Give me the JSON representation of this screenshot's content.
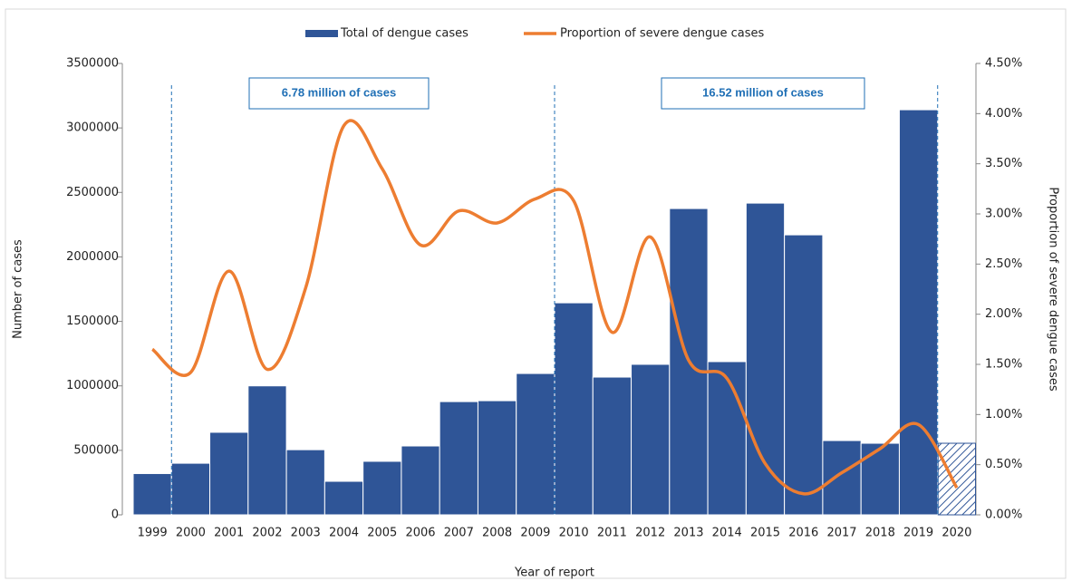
{
  "chart_data": {
    "type": "bar-line",
    "legend_position": "top",
    "x_label": "Year of report",
    "y_label": "Number of cases",
    "y2_label": "Proportion of severe dengue cases",
    "annotations": [
      "6.78 million of cases",
      "16.52 million of cases"
    ],
    "categories": [
      "1999",
      "2000",
      "2001",
      "2002",
      "2003",
      "2004",
      "2005",
      "2006",
      "2007",
      "2008",
      "2009",
      "2010",
      "2011",
      "2012",
      "2013",
      "2014",
      "2015",
      "2016",
      "2017",
      "2018",
      "2019",
      "2020"
    ],
    "series": [
      {
        "name": "Total of dengue cases",
        "type": "bar",
        "color": "#2f5597",
        "values": [
          320000,
          400000,
          640000,
          1000000,
          505000,
          260000,
          415000,
          534000,
          878000,
          885000,
          1096000,
          1644000,
          1068000,
          1167000,
          2375000,
          1188000,
          2417000,
          2171000,
          576000,
          555000,
          3141000,
          555000
        ],
        "hatched": [
          false,
          false,
          false,
          false,
          false,
          false,
          false,
          false,
          false,
          false,
          false,
          false,
          false,
          false,
          false,
          false,
          false,
          false,
          false,
          false,
          false,
          true
        ]
      },
      {
        "name": "Proportion of severe dengue cases",
        "type": "line",
        "axis": "y2",
        "color": "#ed7d31",
        "values": [
          1.65,
          1.42,
          2.43,
          1.45,
          2.26,
          3.88,
          3.45,
          2.69,
          3.03,
          2.91,
          3.15,
          3.13,
          1.82,
          2.77,
          1.54,
          1.36,
          0.51,
          0.21,
          0.42,
          0.66,
          0.9,
          0.27
        ]
      }
    ],
    "ylim": [
      0,
      3500000
    ],
    "yticks": [
      0,
      500000,
      1000000,
      1500000,
      2000000,
      2500000,
      3000000,
      3500000
    ],
    "y2lim": [
      0,
      4.5
    ],
    "y2ticks": [
      {
        "value": 0,
        "label": "0.00%"
      },
      {
        "value": 0.5,
        "label": "0.50%"
      },
      {
        "value": 1,
        "label": "1.00%"
      },
      {
        "value": 1.5,
        "label": "1.50%"
      },
      {
        "value": 2,
        "label": "2.00%"
      },
      {
        "value": 2.5,
        "label": "2.50%"
      },
      {
        "value": 3,
        "label": "3.00%"
      },
      {
        "value": 3.5,
        "label": "3.50%"
      },
      {
        "value": 4,
        "label": "4.00%"
      },
      {
        "value": 4.5,
        "label": "4.50%"
      }
    ]
  }
}
